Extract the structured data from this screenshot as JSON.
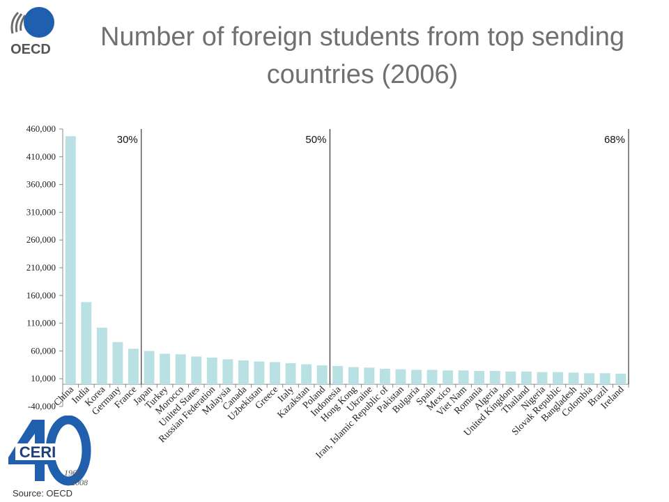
{
  "title": "Number of foreign students from top sending countries (2006)",
  "source": "Source: OECD",
  "logos": {
    "oecd_text": "OECD",
    "ceri_text": "CERI",
    "ceri_years_start": "1968",
    "ceri_years_end": "2008"
  },
  "colors": {
    "bar": "#b9e0e2",
    "axis": "#888888",
    "title": "#707070",
    "oecd_blue": "#1f5fae"
  },
  "chart_data": {
    "type": "bar",
    "title": "Number of foreign students from top sending countries (2006)",
    "ylim": [
      -40000,
      460000
    ],
    "yticks": [
      -40000,
      10000,
      60000,
      110000,
      160000,
      210000,
      260000,
      310000,
      360000,
      410000,
      460000
    ],
    "ytick_labels": [
      "-40,000",
      "10,000",
      "60,000",
      "110,000",
      "160,000",
      "210,000",
      "260,000",
      "310,000",
      "360,000",
      "410,000",
      "460,000"
    ],
    "categories": [
      "China",
      "India",
      "Korea",
      "Germany",
      "France",
      "Japan",
      "Turkey",
      "Morocco",
      "United States",
      "Russian Federation",
      "Malaysia",
      "Canada",
      "Uzbekistan",
      "Greece",
      "Italy",
      "Kazakstan",
      "Poland",
      "Indonesia",
      "Hong Kong",
      "Ukraine",
      "Iran, Islamic Republic of",
      "Pakistan",
      "Bulgaria",
      "Spain",
      "Mexico",
      "Viet Nam",
      "Romania",
      "Algeria",
      "United Kingdom",
      "Thailand",
      "Nigeria",
      "Slovak Republic",
      "Bangladesh",
      "Colombia",
      "Brazil",
      "Ireland"
    ],
    "values": [
      447000,
      148000,
      102000,
      76000,
      64000,
      60000,
      55000,
      54000,
      50000,
      48000,
      45000,
      43000,
      41000,
      40000,
      38000,
      36000,
      34000,
      33000,
      31000,
      30000,
      28000,
      27000,
      26000,
      26000,
      25000,
      25000,
      24000,
      24000,
      23000,
      23000,
      22000,
      22000,
      21000,
      20000,
      20000,
      19000
    ],
    "annotations": [
      {
        "label": "30%",
        "after_category": "France"
      },
      {
        "label": "50%",
        "after_category": "Poland"
      },
      {
        "label": "68%",
        "after_category": "Ireland"
      }
    ]
  }
}
